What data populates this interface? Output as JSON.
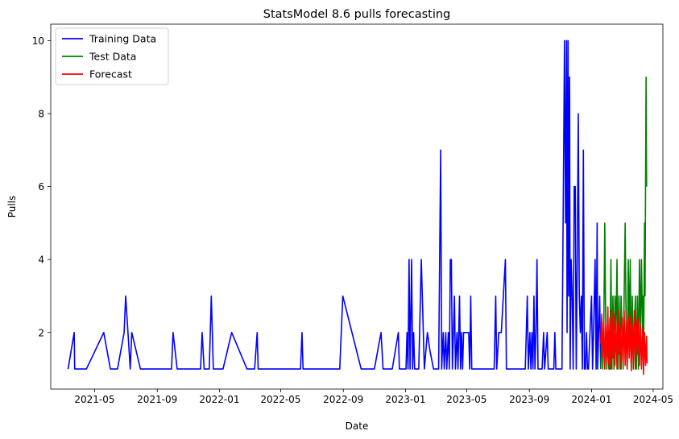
{
  "chart_data": {
    "type": "line",
    "title": "StatsModel 8.6 pulls forecasting",
    "xlabel": "Date",
    "ylabel": "Pulls",
    "x_axis_type": "date",
    "xlim": [
      "2021-02-04",
      "2024-05-20"
    ],
    "ylim": [
      0.45,
      10.45
    ],
    "x_ticks": [
      "2021-05-01",
      "2021-09-01",
      "2022-01-01",
      "2022-05-01",
      "2022-09-01",
      "2023-01-01",
      "2023-05-01",
      "2023-09-01",
      "2024-01-01",
      "2024-05-01"
    ],
    "x_tick_labels": [
      "2021-05",
      "2021-09",
      "2022-01",
      "2022-05",
      "2022-09",
      "2023-01",
      "2023-05",
      "2023-09",
      "2024-01",
      "2024-05"
    ],
    "y_ticks": [
      2,
      4,
      6,
      8,
      10
    ],
    "y_tick_labels": [
      "2",
      "4",
      "6",
      "8",
      "10"
    ],
    "grid": false,
    "legend_position": "top-left",
    "series": [
      {
        "name": "Training Data",
        "color": "#0000ff",
        "points": [
          [
            "2021-03-10",
            1
          ],
          [
            "2021-03-22",
            2
          ],
          [
            "2021-03-23",
            1
          ],
          [
            "2021-04-15",
            1
          ],
          [
            "2021-05-19",
            2
          ],
          [
            "2021-06-01",
            1
          ],
          [
            "2021-06-15",
            1
          ],
          [
            "2021-06-28",
            2
          ],
          [
            "2021-07-01",
            3
          ],
          [
            "2021-07-10",
            1
          ],
          [
            "2021-07-13",
            2
          ],
          [
            "2021-07-30",
            1
          ],
          [
            "2021-09-29",
            1
          ],
          [
            "2021-10-02",
            2
          ],
          [
            "2021-10-10",
            1
          ],
          [
            "2021-11-25",
            1
          ],
          [
            "2021-11-28",
            2
          ],
          [
            "2021-12-02",
            1
          ],
          [
            "2021-12-12",
            1
          ],
          [
            "2021-12-16",
            3
          ],
          [
            "2021-12-20",
            1
          ],
          [
            "2022-01-08",
            1
          ],
          [
            "2022-01-25",
            2
          ],
          [
            "2022-02-24",
            1
          ],
          [
            "2022-03-11",
            1
          ],
          [
            "2022-03-16",
            2
          ],
          [
            "2022-03-18",
            1
          ],
          [
            "2022-06-09",
            1
          ],
          [
            "2022-06-12",
            2
          ],
          [
            "2022-06-14",
            1
          ],
          [
            "2022-08-25",
            1
          ],
          [
            "2022-08-31",
            3
          ],
          [
            "2022-10-06",
            1
          ],
          [
            "2022-11-01",
            1
          ],
          [
            "2022-11-14",
            2
          ],
          [
            "2022-11-18",
            1
          ],
          [
            "2022-12-06",
            1
          ],
          [
            "2022-12-18",
            2
          ],
          [
            "2022-12-20",
            1
          ],
          [
            "2023-01-02",
            1
          ],
          [
            "2023-01-04",
            2
          ],
          [
            "2023-01-06",
            1
          ],
          [
            "2023-01-08",
            4
          ],
          [
            "2023-01-10",
            1
          ],
          [
            "2023-01-13",
            4
          ],
          [
            "2023-01-15",
            1
          ],
          [
            "2023-01-17",
            2
          ],
          [
            "2023-01-19",
            1
          ],
          [
            "2023-01-27",
            1
          ],
          [
            "2023-02-01",
            4
          ],
          [
            "2023-02-05",
            2
          ],
          [
            "2023-02-07",
            1
          ],
          [
            "2023-02-13",
            2
          ],
          [
            "2023-02-18",
            1.5
          ],
          [
            "2023-02-25",
            1
          ],
          [
            "2023-03-07",
            1
          ],
          [
            "2023-03-11",
            7
          ],
          [
            "2023-03-13",
            1
          ],
          [
            "2023-03-16",
            2
          ],
          [
            "2023-03-18",
            1
          ],
          [
            "2023-03-21",
            2
          ],
          [
            "2023-03-23",
            1
          ],
          [
            "2023-03-26",
            2
          ],
          [
            "2023-03-28",
            1
          ],
          [
            "2023-03-30",
            4
          ],
          [
            "2023-04-01",
            4
          ],
          [
            "2023-04-03",
            1
          ],
          [
            "2023-04-05",
            2
          ],
          [
            "2023-04-07",
            3
          ],
          [
            "2023-04-09",
            1
          ],
          [
            "2023-04-12",
            2
          ],
          [
            "2023-04-14",
            1
          ],
          [
            "2023-04-17",
            3
          ],
          [
            "2023-04-19",
            1
          ],
          [
            "2023-04-21",
            2
          ],
          [
            "2023-04-23",
            1
          ],
          [
            "2023-04-25",
            2
          ],
          [
            "2023-05-05",
            2
          ],
          [
            "2023-05-07",
            1
          ],
          [
            "2023-05-09",
            3
          ],
          [
            "2023-05-11",
            1
          ],
          [
            "2023-06-24",
            1
          ],
          [
            "2023-06-27",
            3
          ],
          [
            "2023-06-29",
            1
          ],
          [
            "2023-07-03",
            2
          ],
          [
            "2023-07-08",
            2
          ],
          [
            "2023-07-16",
            4
          ],
          [
            "2023-07-18",
            1
          ],
          [
            "2023-08-24",
            1
          ],
          [
            "2023-08-28",
            3
          ],
          [
            "2023-08-30",
            1
          ],
          [
            "2023-09-02",
            2
          ],
          [
            "2023-09-04",
            1
          ],
          [
            "2023-09-06",
            2
          ],
          [
            "2023-09-08",
            1
          ],
          [
            "2023-09-10",
            3
          ],
          [
            "2023-09-12",
            1
          ],
          [
            "2023-09-14",
            2
          ],
          [
            "2023-09-16",
            4
          ],
          [
            "2023-09-18",
            1
          ],
          [
            "2023-09-26",
            1
          ],
          [
            "2023-09-29",
            2
          ],
          [
            "2023-10-01",
            1
          ],
          [
            "2023-10-06",
            2
          ],
          [
            "2023-10-08",
            1
          ],
          [
            "2023-10-19",
            1
          ],
          [
            "2023-10-21",
            2
          ],
          [
            "2023-10-23",
            1
          ],
          [
            "2023-11-04",
            1
          ],
          [
            "2023-11-09",
            10
          ],
          [
            "2023-11-11",
            5
          ],
          [
            "2023-11-13",
            10
          ],
          [
            "2023-11-14",
            2
          ],
          [
            "2023-11-16",
            10
          ],
          [
            "2023-11-17",
            3
          ],
          [
            "2023-11-19",
            9
          ],
          [
            "2023-11-20",
            1
          ],
          [
            "2023-11-22",
            4
          ],
          [
            "2023-11-24",
            3
          ],
          [
            "2023-11-26",
            1
          ],
          [
            "2023-11-28",
            6
          ],
          [
            "2023-11-30",
            6
          ],
          [
            "2023-12-02",
            1
          ],
          [
            "2023-12-04",
            4
          ],
          [
            "2023-12-06",
            8
          ],
          [
            "2023-12-08",
            3
          ],
          [
            "2023-12-10",
            2
          ],
          [
            "2023-12-12",
            3
          ],
          [
            "2023-12-14",
            1
          ],
          [
            "2023-12-16",
            7
          ],
          [
            "2023-12-18",
            1
          ],
          [
            "2023-12-20",
            1
          ],
          [
            "2023-12-22",
            2
          ],
          [
            "2023-12-24",
            1
          ],
          [
            "2023-12-26",
            1
          ],
          [
            "2024-01-01",
            3
          ],
          [
            "2024-01-03",
            1
          ],
          [
            "2024-01-05",
            2
          ],
          [
            "2024-01-08",
            4
          ],
          [
            "2024-01-10",
            1
          ],
          [
            "2024-01-12",
            5
          ],
          [
            "2024-01-13",
            1
          ],
          [
            "2024-01-15",
            2
          ],
          [
            "2024-01-17",
            3
          ],
          [
            "2024-01-19",
            1
          ]
        ]
      },
      {
        "name": "Test Data",
        "color": "#008000",
        "points": [
          [
            "2024-01-19",
            1
          ],
          [
            "2024-01-21",
            2
          ],
          [
            "2024-01-23",
            1
          ],
          [
            "2024-01-25",
            2
          ],
          [
            "2024-01-27",
            5
          ],
          [
            "2024-01-29",
            2
          ],
          [
            "2024-01-31",
            1
          ],
          [
            "2024-02-02",
            2
          ],
          [
            "2024-02-04",
            1
          ],
          [
            "2024-02-06",
            1
          ],
          [
            "2024-02-08",
            4
          ],
          [
            "2024-02-10",
            1
          ],
          [
            "2024-02-12",
            3
          ],
          [
            "2024-02-14",
            1
          ],
          [
            "2024-02-16",
            3
          ],
          [
            "2024-02-18",
            2
          ],
          [
            "2024-02-20",
            4
          ],
          [
            "2024-02-22",
            1
          ],
          [
            "2024-02-24",
            3
          ],
          [
            "2024-02-26",
            1
          ],
          [
            "2024-02-28",
            3
          ],
          [
            "2024-03-01",
            2
          ],
          [
            "2024-03-03",
            1
          ],
          [
            "2024-03-05",
            3
          ],
          [
            "2024-03-07",
            5
          ],
          [
            "2024-03-09",
            2
          ],
          [
            "2024-03-11",
            1
          ],
          [
            "2024-03-13",
            4
          ],
          [
            "2024-03-15",
            2
          ],
          [
            "2024-03-17",
            4
          ],
          [
            "2024-03-19",
            1
          ],
          [
            "2024-03-21",
            3
          ],
          [
            "2024-03-23",
            1
          ],
          [
            "2024-03-25",
            2
          ],
          [
            "2024-03-27",
            3
          ],
          [
            "2024-03-29",
            1
          ],
          [
            "2024-03-31",
            3
          ],
          [
            "2024-04-02",
            1
          ],
          [
            "2024-04-04",
            4
          ],
          [
            "2024-04-06",
            2
          ],
          [
            "2024-04-08",
            4
          ],
          [
            "2024-04-10",
            2
          ],
          [
            "2024-04-11",
            3
          ],
          [
            "2024-04-12",
            1
          ],
          [
            "2024-04-14",
            5
          ],
          [
            "2024-04-15",
            3
          ],
          [
            "2024-04-16",
            6
          ],
          [
            "2024-04-17",
            9
          ],
          [
            "2024-04-18",
            6
          ]
        ]
      },
      {
        "name": "Forecast",
        "color": "#ff0000",
        "points": [
          [
            "2024-01-19",
            1.7
          ],
          [
            "2024-01-21",
            2.5
          ],
          [
            "2024-01-23",
            1.3
          ],
          [
            "2024-01-25",
            2.3
          ],
          [
            "2024-01-27",
            1.0
          ],
          [
            "2024-01-29",
            2.2
          ],
          [
            "2024-01-31",
            1.2
          ],
          [
            "2024-02-02",
            2.7
          ],
          [
            "2024-02-04",
            1.1
          ],
          [
            "2024-02-06",
            2.4
          ],
          [
            "2024-02-08",
            1.0
          ],
          [
            "2024-02-10",
            2.6
          ],
          [
            "2024-02-12",
            1.3
          ],
          [
            "2024-02-14",
            2.5
          ],
          [
            "2024-02-16",
            1.1
          ],
          [
            "2024-02-18",
            2.3
          ],
          [
            "2024-02-20",
            1.0
          ],
          [
            "2024-02-22",
            2.6
          ],
          [
            "2024-02-24",
            1.4
          ],
          [
            "2024-02-26",
            2.2
          ],
          [
            "2024-02-28",
            1.0
          ],
          [
            "2024-03-01",
            2.4
          ],
          [
            "2024-03-03",
            1.2
          ],
          [
            "2024-03-05",
            2.6
          ],
          [
            "2024-03-07",
            1.1
          ],
          [
            "2024-03-09",
            2.3
          ],
          [
            "2024-03-11",
            1.0
          ],
          [
            "2024-03-13",
            2.5
          ],
          [
            "2024-03-15",
            1.3
          ],
          [
            "2024-03-17",
            2.4
          ],
          [
            "2024-03-19",
            0.95
          ],
          [
            "2024-03-21",
            2.2
          ],
          [
            "2024-03-23",
            1.2
          ],
          [
            "2024-03-25",
            2.6
          ],
          [
            "2024-03-27",
            1.0
          ],
          [
            "2024-03-29",
            2.3
          ],
          [
            "2024-03-31",
            1.4
          ],
          [
            "2024-04-02",
            2.4
          ],
          [
            "2024-04-04",
            1.1
          ],
          [
            "2024-04-06",
            2.2
          ],
          [
            "2024-04-08",
            1.0
          ],
          [
            "2024-04-10",
            2.1
          ],
          [
            "2024-04-12",
            0.85
          ],
          [
            "2024-04-14",
            2.0
          ],
          [
            "2024-04-16",
            1.1
          ],
          [
            "2024-04-18",
            1.9
          ],
          [
            "2024-04-19",
            1.15
          ]
        ]
      }
    ]
  }
}
